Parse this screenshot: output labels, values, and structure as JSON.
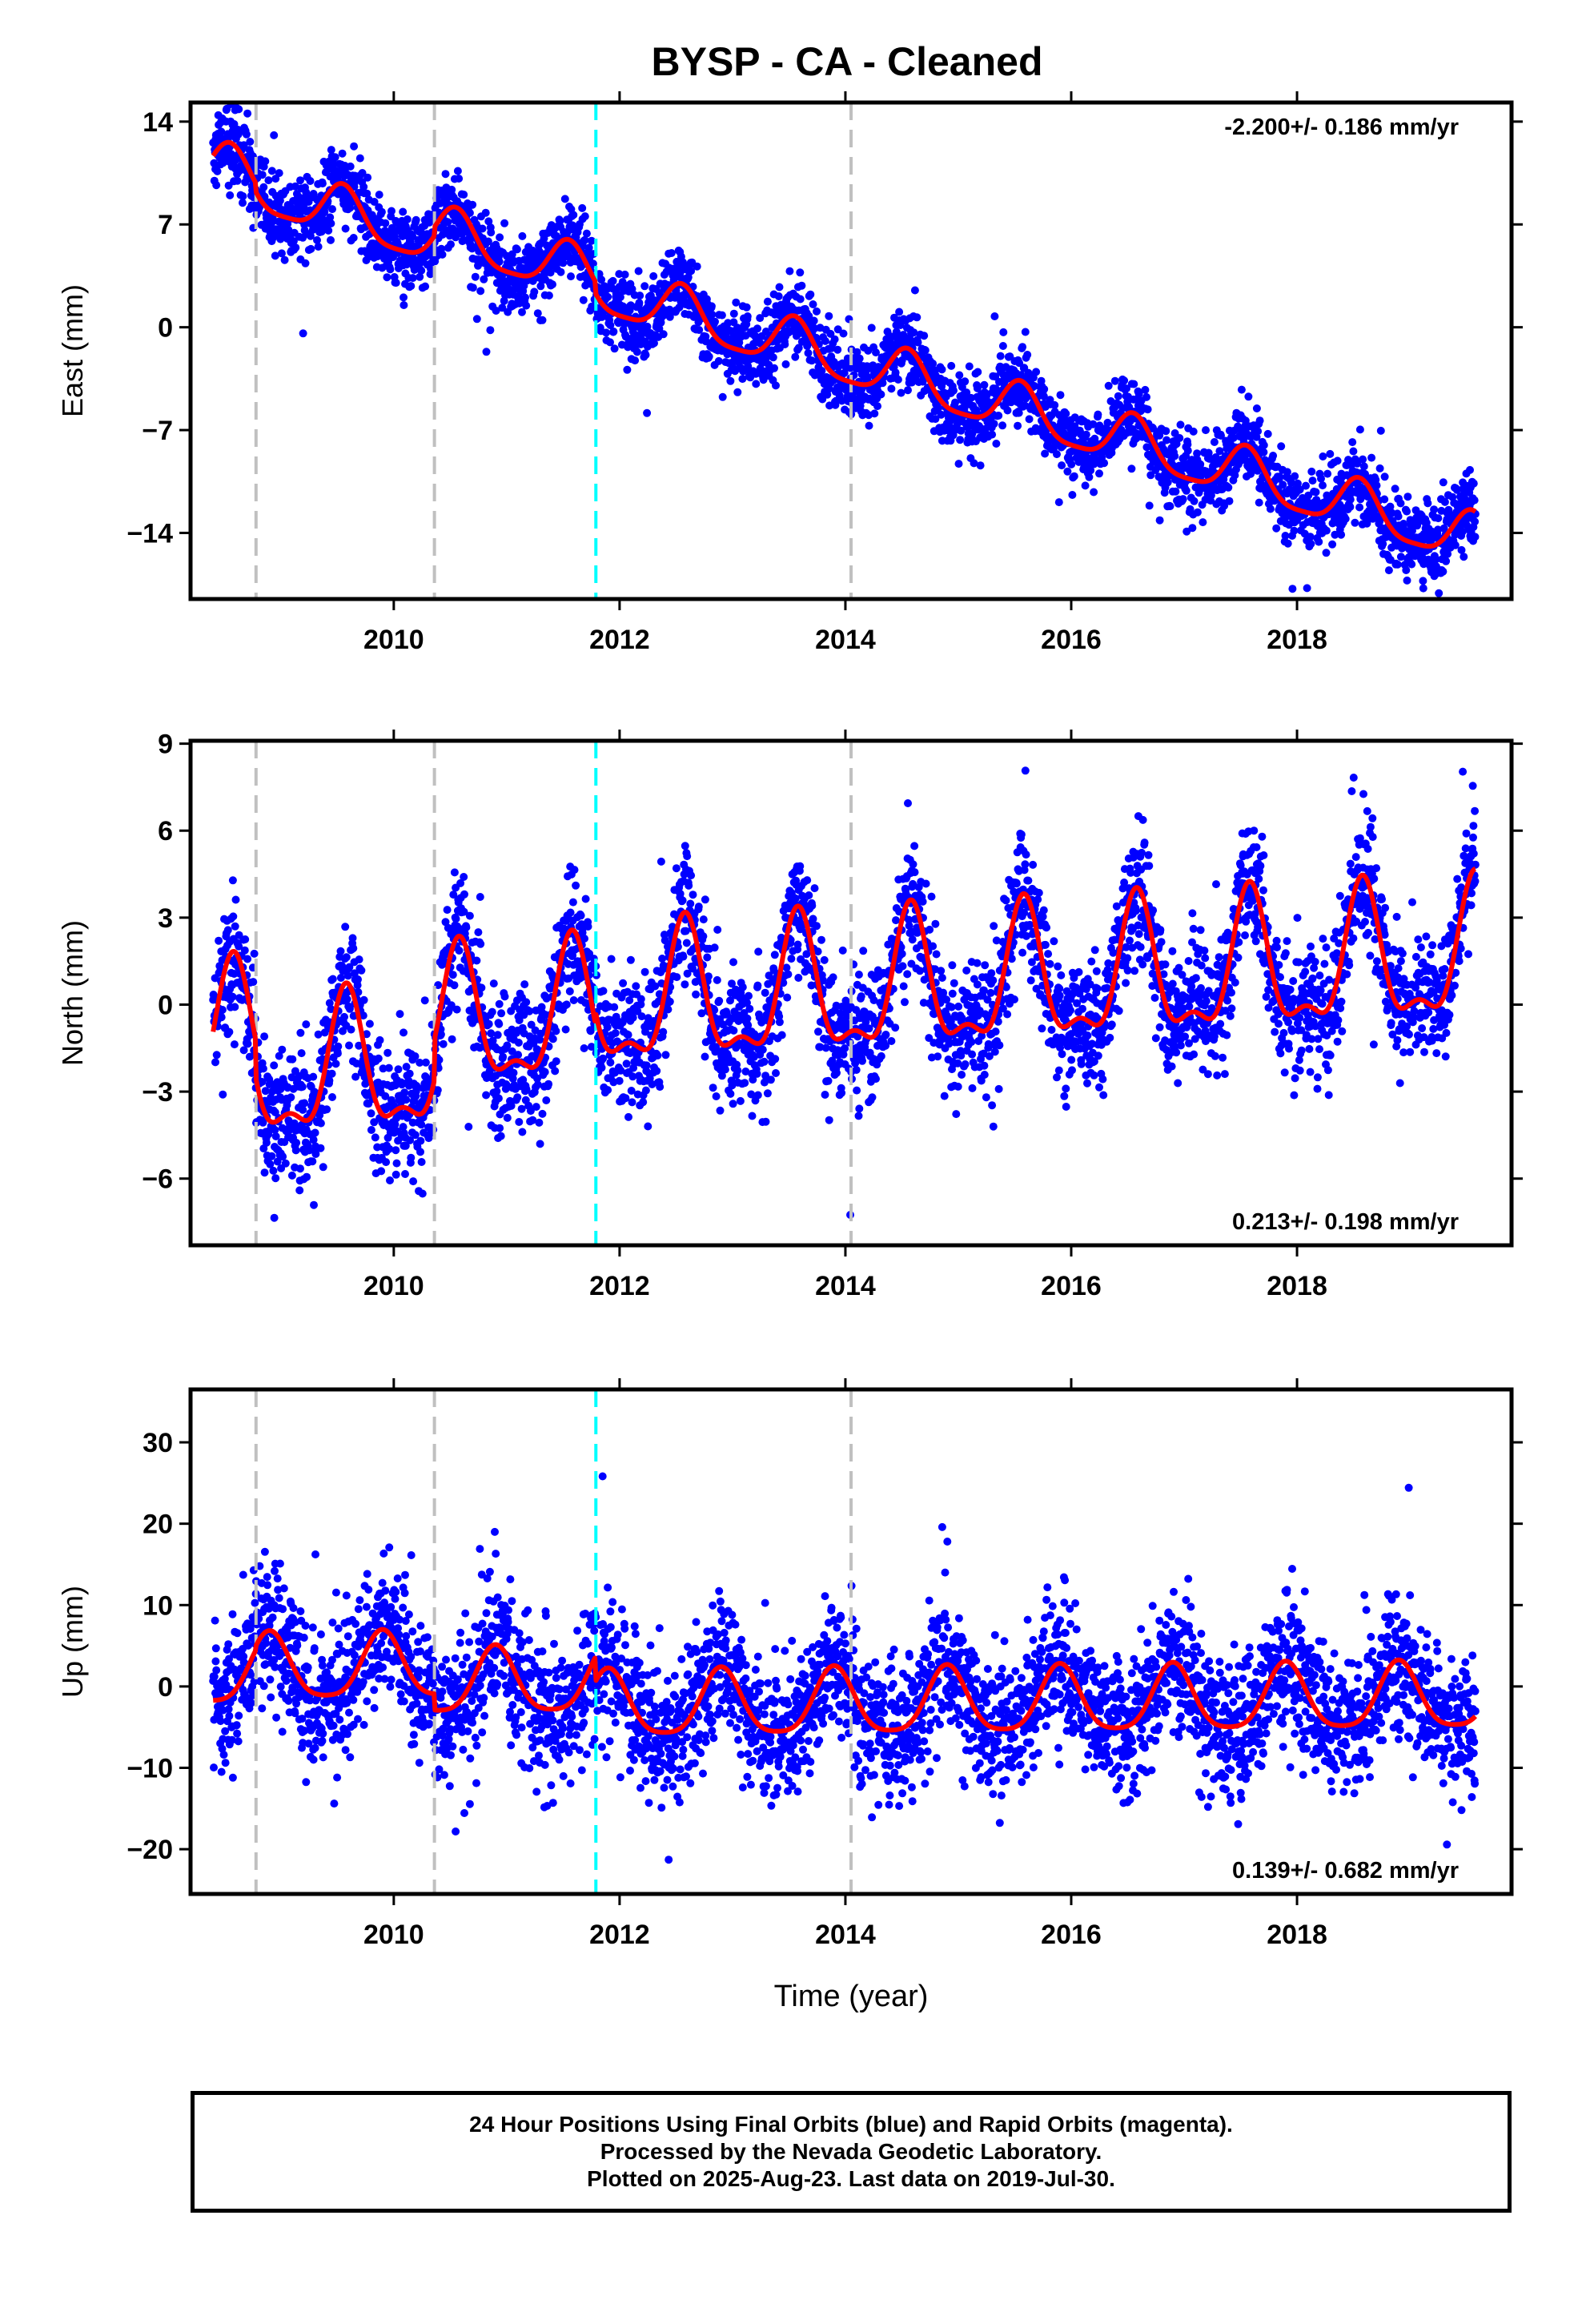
{
  "title": "BYSP  - CA - Cleaned",
  "colors": {
    "data_points": "#0000ff",
    "model_fit": "#ff0000",
    "antenna_change": "#c0c0c0",
    "event_line": "#00ffff"
  },
  "footer": {
    "line1": "24 Hour Positions Using Final Orbits (blue) and Rapid Orbits (magenta).",
    "line2": "Processed by the Nevada Geodetic Laboratory.",
    "line3": "Plotted on 2025-Aug-23. Last data on 2019-Jul-30."
  },
  "chart_data": [
    {
      "type": "scatter",
      "panel": "east",
      "title": "",
      "xlabel": "",
      "ylabel": "East (mm)",
      "rate_label": "-2.200+/- 0.186 mm/yr",
      "rate_position": "top-right",
      "xlim": [
        2008.2,
        2019.9
      ],
      "ylim": [
        -18.5,
        15.3
      ],
      "xticks": [
        2010,
        2012,
        2014,
        2016,
        2018
      ],
      "xtick_labels": [
        "2010",
        "2012",
        "2014",
        "2016",
        "2018"
      ],
      "yticks": [
        14,
        7,
        0,
        -7,
        -14
      ],
      "ytick_labels": [
        "14",
        "7",
        "0",
        "−7",
        "−14"
      ],
      "data_x_range": [
        2008.4,
        2019.58
      ],
      "trend": {
        "rate": -2.2,
        "value_at_start": 10.8
      },
      "seasonal": {
        "annual_amplitude": 1.7,
        "semiannual_amplitude": 0.4,
        "peak_fraction": 0.55
      },
      "scatter_sd": 1.3,
      "approx_point_count": 3900,
      "offsets": [
        {
          "x": 2008.78,
          "dy": -0.6
        },
        {
          "x": 2010.36,
          "dy": 0.6
        },
        {
          "x": 2011.79,
          "dy": -0.8
        },
        {
          "x": 2014.05,
          "dy": 0.0
        }
      ],
      "antenna_changes": [
        2008.78,
        2010.36,
        2014.05
      ],
      "events": [
        2011.79
      ]
    },
    {
      "type": "scatter",
      "panel": "north",
      "title": "",
      "xlabel": "",
      "ylabel": "North (mm)",
      "rate_label": "0.213+/- 0.198 mm/yr",
      "rate_position": "bottom-right",
      "xlim": [
        2008.2,
        2019.9
      ],
      "ylim": [
        -8.3,
        9.1
      ],
      "xticks": [
        2010,
        2012,
        2014,
        2016,
        2018
      ],
      "xtick_labels": [
        "2010",
        "2012",
        "2014",
        "2016",
        "2018"
      ],
      "yticks": [
        9,
        6,
        3,
        0,
        -3,
        -6
      ],
      "ytick_labels": [
        "9",
        "6",
        "3",
        "0",
        "−3",
        "−6"
      ],
      "data_x_range": [
        2008.4,
        2019.58
      ],
      "trend": {
        "rate": 0.213,
        "value_at_start": -1.3
      },
      "seasonal": {
        "annual_amplitude": 2.2,
        "semiannual_amplitude": 0.9,
        "peak_fraction": 0.58
      },
      "scatter_sd": 1.1,
      "approx_point_count": 3900,
      "offsets": [
        {
          "x": 2008.78,
          "dy": -1.3
        },
        {
          "x": 2010.36,
          "dy": 1.4
        },
        {
          "x": 2011.79,
          "dy": 0.4
        },
        {
          "x": 2014.05,
          "dy": 0.0
        }
      ],
      "antenna_changes": [
        2008.78,
        2010.36,
        2014.05
      ],
      "events": [
        2011.79
      ]
    },
    {
      "type": "scatter",
      "panel": "up",
      "title": "",
      "xlabel": "Time (year)",
      "ylabel": "Up (mm)",
      "rate_label": "0.139+/- 0.682 mm/yr",
      "rate_position": "bottom-right",
      "xlim": [
        2008.2,
        2019.9
      ],
      "ylim": [
        -25.5,
        36.5
      ],
      "xticks": [
        2010,
        2012,
        2014,
        2016,
        2018
      ],
      "xtick_labels": [
        "2010",
        "2012",
        "2014",
        "2016",
        "2018"
      ],
      "yticks": [
        30,
        20,
        10,
        0,
        -10,
        -20
      ],
      "ytick_labels": [
        "30",
        "20",
        "10",
        "0",
        "−10",
        "−20"
      ],
      "data_x_range": [
        2008.4,
        2019.58
      ],
      "trend": {
        "rate": 0.139,
        "value_at_start": 1.5
      },
      "seasonal": {
        "annual_amplitude": 4.0,
        "semiannual_amplitude": 0.8,
        "peak_fraction": 0.9
      },
      "scatter_sd": 4.2,
      "approx_point_count": 3900,
      "offsets": [
        {
          "x": 2008.78,
          "dy": 0.5
        },
        {
          "x": 2010.36,
          "dy": -2.0
        },
        {
          "x": 2011.79,
          "dy": -3.0
        },
        {
          "x": 2014.05,
          "dy": 0.0
        }
      ],
      "antenna_changes": [
        2008.78,
        2010.36,
        2014.05
      ],
      "events": [
        2011.79
      ]
    }
  ]
}
